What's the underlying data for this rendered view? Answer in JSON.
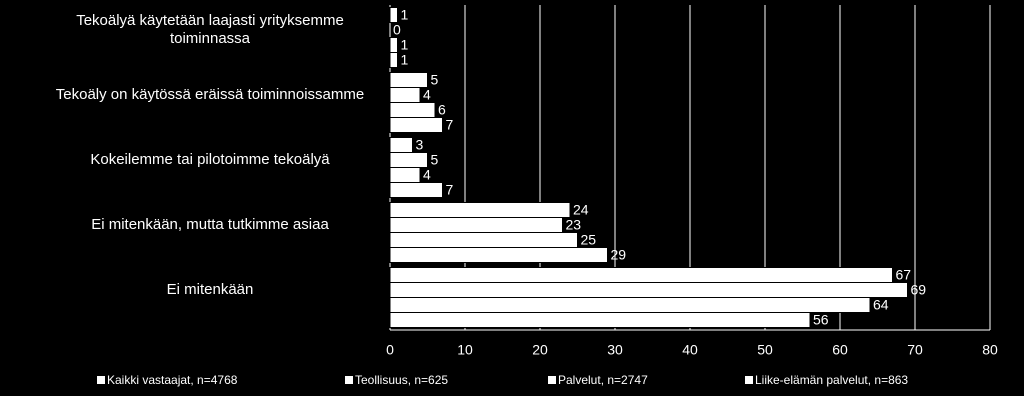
{
  "chart_data": {
    "type": "hbar",
    "categories": [
      "Tekoälyä käytetään laajasti yrityksemme toiminnassa",
      "Tekoäly on käytössä eräissä toiminnoissamme",
      "Kokeilemme tai pilotoimme tekoälyä",
      "Ei mitenkään, mutta tutkimme asiaa",
      "Ei mitenkään"
    ],
    "series": [
      {
        "name": "Kaikki vastaajat, n=4768",
        "color": "#ffffff",
        "values": [
          1,
          5,
          3,
          24,
          67
        ]
      },
      {
        "name": "Teollisuus, n=625",
        "color": "#ffffff",
        "values": [
          0,
          4,
          5,
          23,
          69
        ]
      },
      {
        "name": "Palvelut, n=2747",
        "color": "#ffffff",
        "values": [
          1,
          6,
          4,
          25,
          64
        ]
      },
      {
        "name": "Liike-elämän palvelut, n=863",
        "color": "#ffffff",
        "values": [
          1,
          7,
          7,
          29,
          56
        ]
      }
    ],
    "xlim": [
      0,
      80
    ],
    "xticks": [
      0,
      10,
      20,
      30,
      40,
      50,
      60,
      70,
      80
    ],
    "grid": true,
    "legend": "bottom"
  }
}
